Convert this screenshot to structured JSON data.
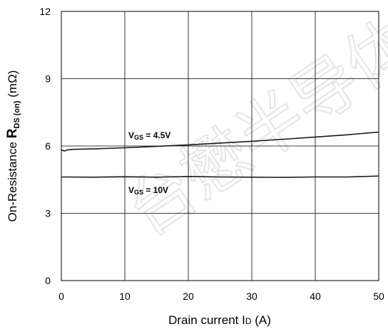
{
  "watermark_text": "台懋半导体",
  "chart_data": {
    "type": "line",
    "xlabel_main": "Drain current I",
    "xlabel_sub": "D",
    "xlabel_unit": " (A)",
    "ylabel_main": "On-Resistance ",
    "ylabel_bold": "R",
    "ylabel_sub": "DS (on)",
    "ylabel_unit": " (mΩ)",
    "xlim": [
      0,
      50
    ],
    "ylim": [
      0,
      12
    ],
    "x_ticks": [
      0,
      10,
      20,
      30,
      40,
      50
    ],
    "y_ticks": [
      0,
      3,
      6,
      9,
      12
    ],
    "grid": true,
    "series": [
      {
        "label_main": "V",
        "label_sub": "GS",
        "label_value": " = 4.5V",
        "x": [
          0,
          0.5,
          1,
          2,
          3,
          5,
          10,
          15,
          20,
          25,
          30,
          35,
          40,
          45,
          50
        ],
        "y": [
          5.82,
          5.78,
          5.83,
          5.85,
          5.86,
          5.87,
          5.92,
          5.98,
          6.05,
          6.13,
          6.21,
          6.3,
          6.4,
          6.5,
          6.62
        ]
      },
      {
        "label_main": "V",
        "label_sub": "GS",
        "label_value": " = 10V",
        "x": [
          0,
          5,
          10,
          15,
          20,
          25,
          30,
          35,
          40,
          45,
          50
        ],
        "y": [
          4.62,
          4.61,
          4.63,
          4.61,
          4.64,
          4.62,
          4.61,
          4.6,
          4.62,
          4.62,
          4.66
        ]
      }
    ]
  }
}
